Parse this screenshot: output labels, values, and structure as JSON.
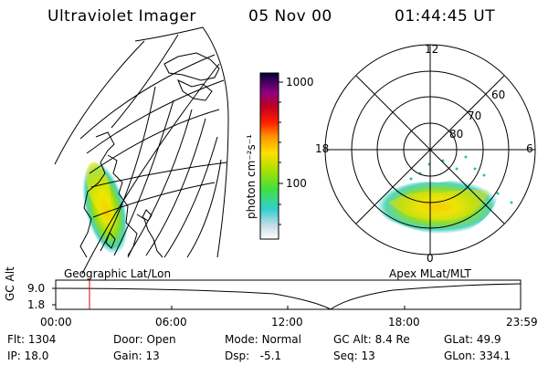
{
  "header": {
    "instrument": "Ultraviolet Imager",
    "date": "05 Nov 00",
    "time": "01:44:45 UT"
  },
  "colorbar": {
    "label": "photon cm⁻²s⁻¹",
    "ticks": [
      "1000",
      "100"
    ]
  },
  "geo_panel": {
    "label": "Geographic Lat/Lon"
  },
  "polar_panel": {
    "label": "Apex MLat/MLT",
    "mlt_labels": [
      "12",
      "6",
      "0",
      "18"
    ],
    "lat_labels": [
      "60",
      "70",
      "80"
    ]
  },
  "timeline": {
    "axis_label": "GC Alt",
    "y_ticks": [
      "9.0",
      "1.8"
    ],
    "x_ticks": [
      "00:00",
      "06:00",
      "12:00",
      "18:00",
      "23:59"
    ],
    "current_time_fraction": 0.0727
  },
  "status": [
    [
      {
        "label": "Flt:",
        "value": "1304"
      },
      {
        "label": "Door:",
        "value": "Open"
      },
      {
        "label": "Mode:",
        "value": "Normal"
      },
      {
        "label": "GC Alt:",
        "value": "8.4 Re"
      },
      {
        "label": "GLat:",
        "value": "49.9"
      }
    ],
    [
      {
        "label": "IP:",
        "value": "18.0"
      },
      {
        "label": "Gain:",
        "value": "13"
      },
      {
        "label": "Dsp:",
        "value": "-5.1"
      },
      {
        "label": "Seq:",
        "value": "13"
      },
      {
        "label": "GLon:",
        "value": "334.1"
      }
    ]
  ]
}
